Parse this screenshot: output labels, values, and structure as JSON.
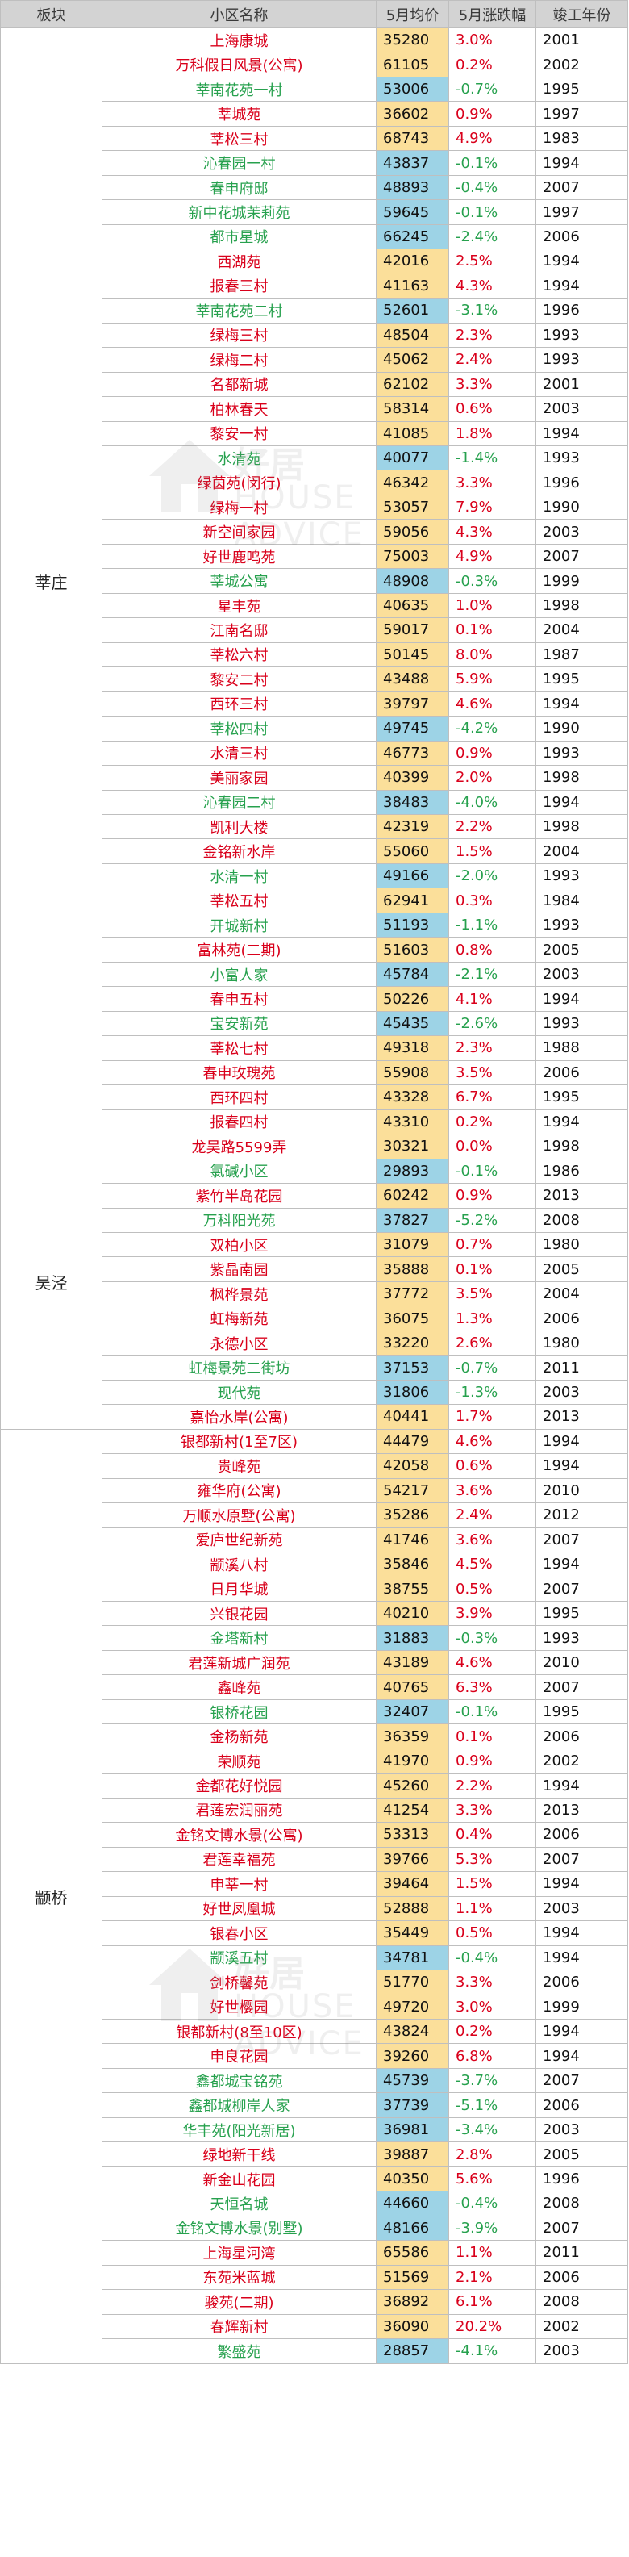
{
  "headers": {
    "board": "板块",
    "name": "小区名称",
    "price": "5月均价",
    "change": "5月涨跌幅",
    "year": "竣工年份"
  },
  "watermark": {
    "text1": "好居",
    "text2": "HOUSE ADVICE"
  },
  "colors": {
    "up_price_bg": "#fbdf9a",
    "down_price_bg": "#9dd3e6",
    "up_text": "#d9001b",
    "down_text": "#27a14e",
    "old_year": "#9a9a9a"
  },
  "groups": [
    {
      "board": "莘庄",
      "rows": [
        [
          "上海康城",
          "35280",
          "3.0%",
          "2001"
        ],
        [
          "万科假日风景(公寓)",
          "61105",
          "0.2%",
          "2002"
        ],
        [
          "莘南花苑一村",
          "53006",
          "-0.7%",
          "1995"
        ],
        [
          "莘城苑",
          "36602",
          "0.9%",
          "1997"
        ],
        [
          "莘松三村",
          "68743",
          "4.9%",
          "1983"
        ],
        [
          "沁春园一村",
          "43837",
          "-0.1%",
          "1994"
        ],
        [
          "春申府邸",
          "48893",
          "-0.4%",
          "2007"
        ],
        [
          "新中花城茉莉苑",
          "59645",
          "-0.1%",
          "1997"
        ],
        [
          "都市星城",
          "66245",
          "-2.4%",
          "2006"
        ],
        [
          "西湖苑",
          "42016",
          "2.5%",
          "1994"
        ],
        [
          "报春三村",
          "41163",
          "4.3%",
          "1994"
        ],
        [
          "莘南花苑二村",
          "52601",
          "-3.1%",
          "1996"
        ],
        [
          "绿梅三村",
          "48504",
          "2.3%",
          "1993"
        ],
        [
          "绿梅二村",
          "45062",
          "2.4%",
          "1993"
        ],
        [
          "名都新城",
          "62102",
          "3.3%",
          "2001"
        ],
        [
          "柏林春天",
          "58314",
          "0.6%",
          "2003"
        ],
        [
          "黎安一村",
          "41085",
          "1.8%",
          "1994"
        ],
        [
          "水清苑",
          "40077",
          "-1.4%",
          "1993"
        ],
        [
          "绿茵苑(闵行)",
          "46342",
          "3.3%",
          "1996"
        ],
        [
          "绿梅一村",
          "53057",
          "7.9%",
          "1990"
        ],
        [
          "新空间家园",
          "59056",
          "4.3%",
          "2003"
        ],
        [
          "好世鹿鸣苑",
          "75003",
          "4.9%",
          "2007"
        ],
        [
          "莘城公寓",
          "48908",
          "-0.3%",
          "1999"
        ],
        [
          "星丰苑",
          "40635",
          "1.0%",
          "1998"
        ],
        [
          "江南名邸",
          "59017",
          "0.1%",
          "2004"
        ],
        [
          "莘松六村",
          "50145",
          "8.0%",
          "1987"
        ],
        [
          "黎安二村",
          "43488",
          "5.9%",
          "1995"
        ],
        [
          "西环三村",
          "39797",
          "4.6%",
          "1994"
        ],
        [
          "莘松四村",
          "49745",
          "-4.2%",
          "1990"
        ],
        [
          "水清三村",
          "46773",
          "0.9%",
          "1993"
        ],
        [
          "美丽家园",
          "40399",
          "2.0%",
          "1998"
        ],
        [
          "沁春园二村",
          "38483",
          "-4.0%",
          "1994"
        ],
        [
          "凯利大楼",
          "42319",
          "2.2%",
          "1998"
        ],
        [
          "金铭新水岸",
          "55060",
          "1.5%",
          "2004"
        ],
        [
          "水清一村",
          "49166",
          "-2.0%",
          "1993"
        ],
        [
          "莘松五村",
          "62941",
          "0.3%",
          "1984"
        ],
        [
          "开城新村",
          "51193",
          "-1.1%",
          "1993"
        ],
        [
          "富林苑(二期)",
          "51603",
          "0.8%",
          "2005"
        ],
        [
          "小富人家",
          "45784",
          "-2.1%",
          "2003"
        ],
        [
          "春申五村",
          "50226",
          "4.1%",
          "1994"
        ],
        [
          "宝安新苑",
          "45435",
          "-2.6%",
          "1993"
        ],
        [
          "莘松七村",
          "49318",
          "2.3%",
          "1988"
        ],
        [
          "春申玫瑰苑",
          "55908",
          "3.5%",
          "2006"
        ],
        [
          "西环四村",
          "43328",
          "6.7%",
          "1995"
        ],
        [
          "报春四村",
          "43310",
          "0.2%",
          "1994"
        ]
      ]
    },
    {
      "board": "吴泾",
      "rows": [
        [
          "龙吴路5599弄",
          "30321",
          "0.0%",
          "1998"
        ],
        [
          "氯碱小区",
          "29893",
          "-0.1%",
          "1986"
        ],
        [
          "紫竹半岛花园",
          "60242",
          "0.9%",
          "2013"
        ],
        [
          "万科阳光苑",
          "37827",
          "-5.2%",
          "2008"
        ],
        [
          "双柏小区",
          "31079",
          "0.7%",
          "1980"
        ],
        [
          "紫晶南园",
          "35888",
          "0.1%",
          "2005"
        ],
        [
          "枫桦景苑",
          "37772",
          "3.5%",
          "2004"
        ],
        [
          "虹梅新苑",
          "36075",
          "1.3%",
          "2006"
        ],
        [
          "永德小区",
          "33220",
          "2.6%",
          "1980"
        ],
        [
          "虹梅景苑二街坊",
          "37153",
          "-0.7%",
          "2011"
        ],
        [
          "现代苑",
          "31806",
          "-1.3%",
          "2003"
        ],
        [
          "嘉怡水岸(公寓)",
          "40441",
          "1.7%",
          "2013"
        ]
      ]
    },
    {
      "board": "颛桥",
      "rows": [
        [
          "银都新村(1至7区)",
          "44479",
          "4.6%",
          "1994"
        ],
        [
          "贵峰苑",
          "42058",
          "0.6%",
          "1994"
        ],
        [
          "雍华府(公寓)",
          "54217",
          "3.6%",
          "2010"
        ],
        [
          "万顺水原墅(公寓)",
          "35286",
          "2.4%",
          "2012"
        ],
        [
          "爱庐世纪新苑",
          "41746",
          "3.6%",
          "2007"
        ],
        [
          "颛溪八村",
          "35846",
          "4.5%",
          "1994"
        ],
        [
          "日月华城",
          "38755",
          "0.5%",
          "2007"
        ],
        [
          "兴银花园",
          "40210",
          "3.9%",
          "1995"
        ],
        [
          "金塔新村",
          "31883",
          "-0.3%",
          "1993"
        ],
        [
          "君莲新城广润苑",
          "43189",
          "4.6%",
          "2010"
        ],
        [
          "鑫峰苑",
          "40765",
          "6.3%",
          "2007"
        ],
        [
          "银桥花园",
          "32407",
          "-0.1%",
          "1995"
        ],
        [
          "金杨新苑",
          "36359",
          "0.1%",
          "2006"
        ],
        [
          "荣顺苑",
          "41970",
          "0.9%",
          "2002"
        ],
        [
          "金都花好悦园",
          "45260",
          "2.2%",
          "1994"
        ],
        [
          "君莲宏润丽苑",
          "41254",
          "3.3%",
          "2013"
        ],
        [
          "金铭文博水景(公寓)",
          "53313",
          "0.4%",
          "2006"
        ],
        [
          "君莲幸福苑",
          "39766",
          "5.3%",
          "2007"
        ],
        [
          "申莘一村",
          "39464",
          "1.5%",
          "1994"
        ],
        [
          "好世凤凰城",
          "52888",
          "1.1%",
          "2003"
        ],
        [
          "银春小区",
          "35449",
          "0.5%",
          "1994"
        ],
        [
          "颛溪五村",
          "34781",
          "-0.4%",
          "1994"
        ],
        [
          "剑桥馨苑",
          "51770",
          "3.3%",
          "2006"
        ],
        [
          "好世樱园",
          "49720",
          "3.0%",
          "1999"
        ],
        [
          "银都新村(8至10区)",
          "43824",
          "0.2%",
          "1994"
        ],
        [
          "申良花园",
          "39260",
          "6.8%",
          "1994"
        ],
        [
          "鑫都城宝铭苑",
          "45739",
          "-3.7%",
          "2007"
        ],
        [
          "鑫都城柳岸人家",
          "37739",
          "-5.1%",
          "2006"
        ],
        [
          "华丰苑(阳光新居)",
          "36981",
          "-3.4%",
          "2003"
        ],
        [
          "绿地新干线",
          "39887",
          "2.8%",
          "2005"
        ],
        [
          "新金山花园",
          "40350",
          "5.6%",
          "1996"
        ],
        [
          "天恒名城",
          "44660",
          "-0.4%",
          "2008"
        ],
        [
          "金铭文博水景(别墅)",
          "48166",
          "-3.9%",
          "2007"
        ],
        [
          "上海星河湾",
          "65586",
          "1.1%",
          "2011"
        ],
        [
          "东苑米蓝城",
          "51569",
          "2.1%",
          "2006"
        ],
        [
          "骏苑(二期)",
          "36892",
          "6.1%",
          "2008"
        ],
        [
          "春辉新村",
          "36090",
          "20.2%",
          "2002"
        ],
        [
          "繁盛苑",
          "28857",
          "-4.1%",
          "2003"
        ]
      ]
    }
  ]
}
